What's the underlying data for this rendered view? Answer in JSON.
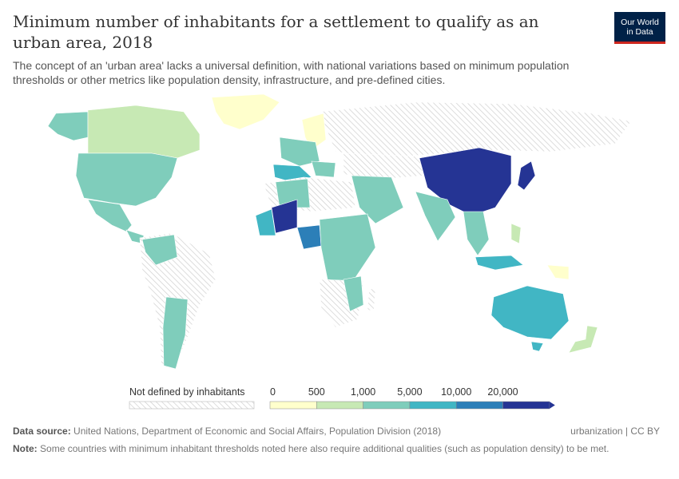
{
  "title": "Minimum number of inhabitants for a settlement to qualify as an urban area, 2018",
  "subtitle": "The concept of an 'urban area' lacks a universal definition, with national variations based on minimum population thresholds or other metrics like population density, infrastructure, and pre-defined cities.",
  "logo": {
    "line1": "Our World",
    "line2": "in Data",
    "bg": "#002147",
    "accent": "#ce261e"
  },
  "legend": {
    "nodata_label": "Not defined by inhabitants",
    "ticks": [
      "0",
      "500",
      "1,000",
      "5,000",
      "10,000",
      "20,000"
    ],
    "colors": [
      "#ffffcc",
      "#c7e9b4",
      "#7fcdbb",
      "#41b6c4",
      "#2c7fb8",
      "#253494"
    ]
  },
  "footer": {
    "source_label": "Data source:",
    "source_text": "United Nations, Department of Economic and Social Affairs, Population Division (2018)",
    "license": "urbanization | CC BY",
    "note_label": "Note:",
    "note_text": "Some countries with minimum inhabitant thresholds noted here also require additional qualities (such as population density) to be met."
  },
  "map_regions": [
    {
      "name": "Canada",
      "color": "#c7e9b4"
    },
    {
      "name": "United States",
      "color": "#7fcdbb"
    },
    {
      "name": "Mexico",
      "color": "#7fcdbb"
    },
    {
      "name": "Greenland",
      "color": "#ffffcc"
    },
    {
      "name": "Alaska",
      "color": "#7fcdbb"
    },
    {
      "name": "South America",
      "color": "nodata"
    },
    {
      "name": "Russia",
      "color": "nodata"
    },
    {
      "name": "China",
      "color": "#253494"
    },
    {
      "name": "Japan",
      "color": "#253494"
    },
    {
      "name": "Mali",
      "color": "#253494"
    },
    {
      "name": "Nigeria",
      "color": "#2c7fb8"
    },
    {
      "name": "India",
      "color": "#7fcdbb"
    },
    {
      "name": "Australia",
      "color": "#41b6c4"
    },
    {
      "name": "New Zealand",
      "color": "#c7e9b4"
    },
    {
      "name": "Papua New Guinea",
      "color": "#ffffcc"
    },
    {
      "name": "Scandinavia",
      "color": "#ffffcc"
    },
    {
      "name": "Southern Europe",
      "color": "#41b6c4"
    },
    {
      "name": "Central Asia",
      "color": "nodata"
    }
  ]
}
